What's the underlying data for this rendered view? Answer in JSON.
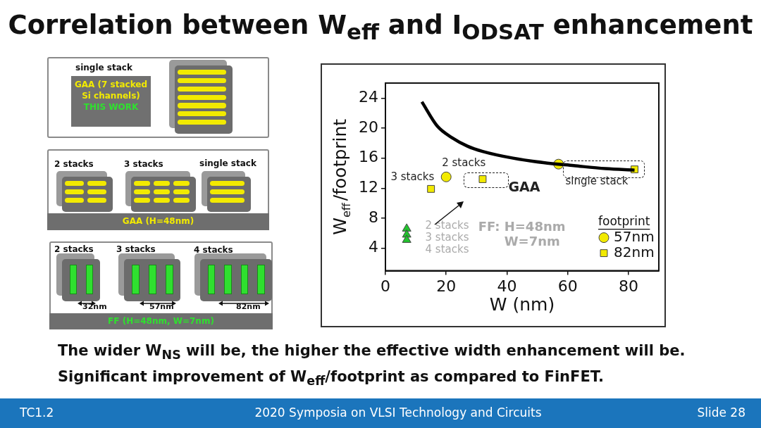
{
  "chart_data": {
    "type": "scatter",
    "title": "Correlation between W$_{eff}$ and I$_{ODSAT}$ enhancement",
    "xlabel": "W (nm)",
    "ylabel": "W$_{eff}$/footprint",
    "legend_title": "footprint",
    "legend": "bottom right",
    "xlim": [
      0,
      90
    ],
    "ylim": [
      1,
      26
    ],
    "xticks": [
      0,
      20,
      40,
      60,
      80
    ],
    "yticks": [
      4,
      8,
      12,
      16,
      20,
      24
    ],
    "series": [
      {
        "type": "line",
        "color": "#000000",
        "marker": "none",
        "x": [
          12,
          17,
          22,
          27,
          32,
          42,
          52,
          62,
          72.5,
          82
        ],
        "values": [
          23.5,
          20.3,
          18.7,
          17.6,
          16.9,
          16.0,
          15.4,
          15.0,
          14.6,
          14.4
        ]
      },
      {
        "type": "scatter",
        "name": "57nm",
        "color": "#f2ea00",
        "marker": "circle",
        "x": [
          20,
          57
        ],
        "values": [
          13.5,
          15.2
        ]
      },
      {
        "type": "scatter",
        "name": "82nm",
        "color": "#f2ea00",
        "marker": "square",
        "x": [
          15,
          32,
          82
        ],
        "values": [
          11.9,
          13.2,
          14.5
        ]
      },
      {
        "type": "scatter",
        "color": "#22c32e",
        "marker": "triangle",
        "x": [
          7,
          7,
          7
        ],
        "values": [
          6.6,
          5.8,
          5.1
        ]
      }
    ],
    "annotations": [
      "3 stacks",
      "2 stacks",
      "single stack",
      "GAA",
      "2 stacks",
      "3 stacks",
      "4 stacks",
      "FF: H=48nm",
      "W=7nm",
      "The wider W$_{NS}$ will be, the higher the effective width enhancement will be. Significant improvement of W$_{eff}$/footprint as compared to FinFET.",
      "TC1.2",
      "2020 Symposia on VLSI Technology and Circuits",
      "Slide 28",
      "single stack",
      "GAA (7 stacked Si channels)",
      "THIS WORK",
      "2 stacks",
      "3 stacks",
      "single stack",
      "GAA (H=48nm)",
      "2 stacks",
      "3 stacks",
      "4 stacks",
      "32nm",
      "57nm",
      "82nm",
      "FF (H=48nm, W=7nm)"
    ]
  }
}
